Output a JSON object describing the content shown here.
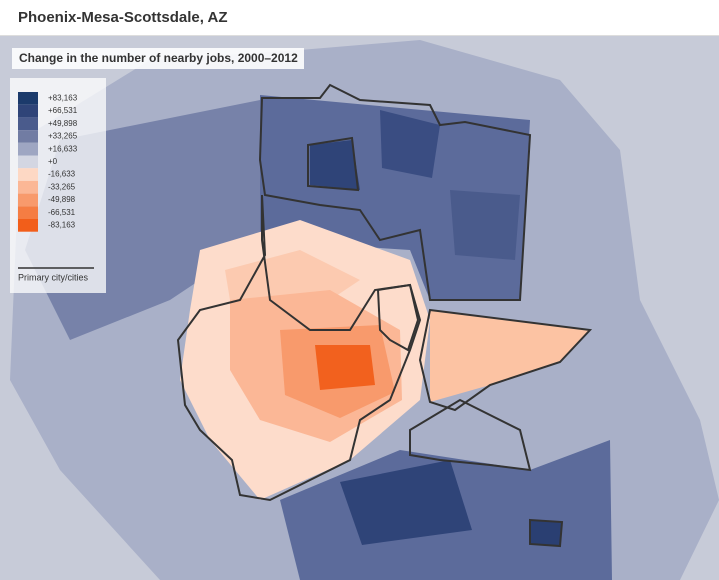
{
  "header": {
    "title": "Phoenix-Mesa-Scottsdale, AZ"
  },
  "map": {
    "subtitle": "Change in the number of nearby jobs, 2000–2012",
    "legend": {
      "items": [
        {
          "label": "+83,163",
          "color": "#1b3a6b"
        },
        {
          "label": "+66,531",
          "color": "#2f4478"
        },
        {
          "label": "+49,898",
          "color": "#4a5b8c"
        },
        {
          "label": "+33,265",
          "color": "#717ca3"
        },
        {
          "label": "+16,633",
          "color": "#9ea6c2"
        },
        {
          "label": "+0",
          "color": "#d3d6e2"
        },
        {
          "label": "-16,633",
          "color": "#fdd8c4"
        },
        {
          "label": "-33,265",
          "color": "#fbb796"
        },
        {
          "label": "-49,898",
          "color": "#f89a6c"
        },
        {
          "label": "-66,531",
          "color": "#f57d43"
        },
        {
          "label": "-83,163",
          "color": "#f25e1a"
        }
      ],
      "boundary_label": "Primary city/cities"
    }
  }
}
